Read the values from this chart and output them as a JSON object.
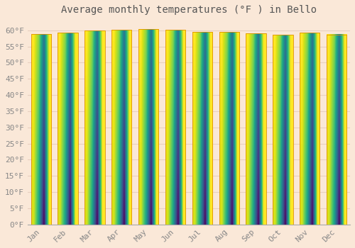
{
  "title": "Average monthly temperatures (°F ) in Bello",
  "months": [
    "Jan",
    "Feb",
    "Mar",
    "Apr",
    "May",
    "Jun",
    "Jul",
    "Aug",
    "Sep",
    "Oct",
    "Nov",
    "Dec"
  ],
  "values": [
    58.8,
    59.2,
    59.9,
    60.1,
    60.3,
    60.1,
    59.5,
    59.5,
    59.1,
    58.6,
    59.3,
    58.7
  ],
  "bar_color": "#FFC020",
  "bar_edge_color": "#E09000",
  "background_color": "#FAE8D8",
  "grid_color": "#E8D0C0",
  "text_color": "#888888",
  "title_color": "#555555",
  "ylim_max": 63,
  "yticks": [
    0,
    5,
    10,
    15,
    20,
    25,
    30,
    35,
    40,
    45,
    50,
    55,
    60
  ],
  "ytick_labels": [
    "0°F",
    "5°F",
    "10°F",
    "15°F",
    "20°F",
    "25°F",
    "30°F",
    "35°F",
    "40°F",
    "45°F",
    "50°F",
    "55°F",
    "60°F"
  ],
  "title_fontsize": 10,
  "tick_fontsize": 8,
  "font_family": "monospace",
  "bar_width": 0.75,
  "bar_bottom_color": "#F0A020",
  "bar_top_color": "#FFD878"
}
